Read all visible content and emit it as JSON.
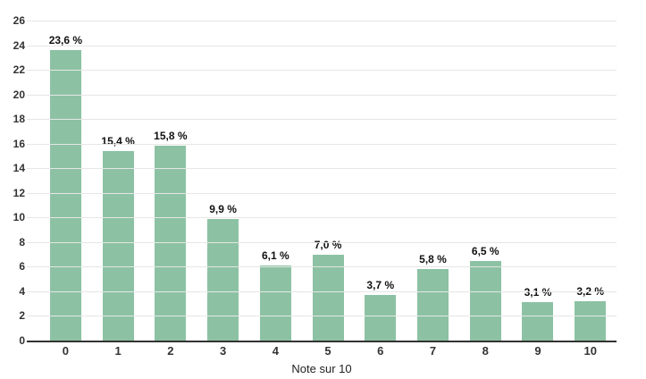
{
  "chart_data": {
    "type": "bar",
    "title": "",
    "xlabel": "Note sur 10",
    "ylabel": "",
    "ylim": [
      0,
      26
    ],
    "ytick_step": 2,
    "grid": "horizontal",
    "legend": "none",
    "categories": [
      "0",
      "1",
      "2",
      "3",
      "4",
      "5",
      "6",
      "7",
      "8",
      "9",
      "10"
    ],
    "values": [
      23.6,
      15.4,
      15.8,
      9.9,
      6.1,
      7.0,
      3.7,
      5.8,
      6.5,
      3.1,
      3.2
    ],
    "value_labels": [
      "23,6 %",
      "15,4 %",
      "15,8 %",
      "9,9 %",
      "6,1 %",
      "7,0 %",
      "3,7 %",
      "5,8 %",
      "6,5 %",
      "3,1 %",
      "3,2 %"
    ],
    "colors": {
      "bar": "#8cc2a3",
      "gridline": "#e6e6e6",
      "axis_line": "#333333",
      "tick_label": "#333333",
      "value_label": "#111111",
      "background": "#ffffff"
    }
  }
}
